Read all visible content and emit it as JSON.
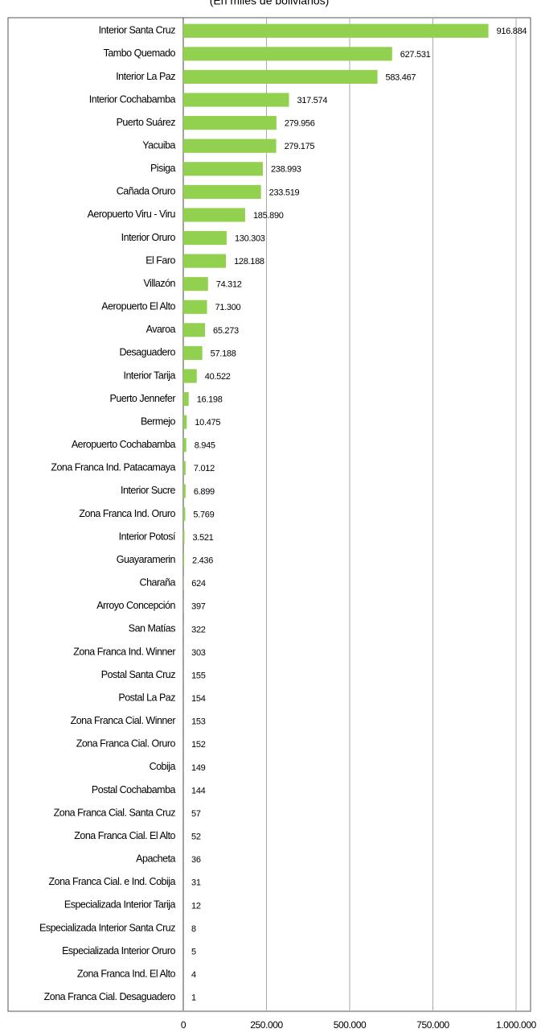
{
  "chart_data": {
    "type": "bar",
    "orientation": "horizontal",
    "subtitle": "(En miles de bolivianos)",
    "categories": [
      "Interior Santa Cruz",
      "Tambo Quemado",
      "Interior La Paz",
      "Interior Cochabamba",
      "Puerto Suárez",
      "Yacuiba",
      "Pisiga",
      "Cañada Oruro",
      "Aeropuerto Viru - Viru",
      "Interior Oruro",
      "El Faro",
      "Villazón",
      "Aeropuerto El Alto",
      "Avaroa",
      "Desaguadero",
      "Interior Tarija",
      "Puerto Jennefer",
      "Bermejo",
      "Aeropuerto Cochabamba",
      "Zona Franca Ind. Patacamaya",
      "Interior Sucre",
      "Zona Franca Ind. Oruro",
      "Interior Potosí",
      "Guayaramerin",
      "Charaña",
      "Arroyo Concepción",
      "San Matías",
      "Zona Franca Ind. Winner",
      "Postal Santa Cruz",
      "Postal La Paz",
      "Zona Franca Cial. Winner",
      "Zona Franca Cial. Oruro",
      "Cobija",
      "Postal Cochabamba",
      "Zona Franca Cial. Santa Cruz",
      "Zona Franca Cial. El Alto",
      "Apacheta",
      "Zona Franca Cial. e Ind. Cobija",
      "Especializada Interior Tarija",
      "Especializada Interior Santa Cruz",
      "Especializada Interior Oruro",
      "Zona Franca Ind. El Alto",
      "Zona Franca Cial. Desaguadero"
    ],
    "values": [
      916884,
      627531,
      583467,
      317574,
      279956,
      279175,
      238993,
      233519,
      185890,
      130303,
      128188,
      74312,
      71300,
      65273,
      57188,
      40522,
      16198,
      10475,
      8945,
      7012,
      6899,
      5769,
      3521,
      2436,
      624,
      397,
      322,
      303,
      155,
      154,
      153,
      152,
      149,
      144,
      57,
      52,
      36,
      31,
      12,
      8,
      5,
      4,
      1
    ],
    "value_labels": [
      "916.884",
      "627.531",
      "583.467",
      "317.574",
      "279.956",
      "279.175",
      "238.993",
      "233.519",
      "185.890",
      "130.303",
      "128.188",
      "74.312",
      "71.300",
      "65.273",
      "57.188",
      "40.522",
      "16.198",
      "10.475",
      "8.945",
      "7.012",
      "6.899",
      "5.769",
      "3.521",
      "2.436",
      "624",
      "397",
      "322",
      "303",
      "155",
      "154",
      "153",
      "152",
      "149",
      "144",
      "57",
      "52",
      "36",
      "31",
      "12",
      "8",
      "5",
      "4",
      "1"
    ],
    "color": "#92d050",
    "xlim": [
      0,
      1000000
    ],
    "xticks": [
      0,
      {
        "value": 250000,
        "label": "250.000"
      },
      {
        "value": 500000,
        "label": "500.000"
      },
      {
        "value": 750000,
        "label": "750.000"
      },
      {
        "value": 1000000,
        "label": "1.000.000"
      }
    ],
    "grid": true
  }
}
